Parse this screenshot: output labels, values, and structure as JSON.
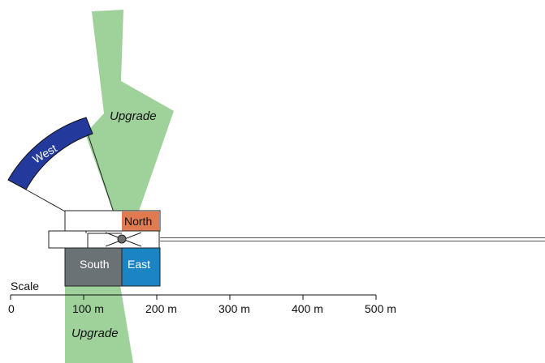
{
  "colors": {
    "upgrade_fill": "#9fd19a",
    "west_fill": "#233a9c",
    "north_fill": "#e07a50",
    "south_fill": "#6b7275",
    "east_fill": "#1b85c4",
    "outline": "#222222",
    "target": "#6e6e6e"
  },
  "labels": {
    "upgrade_top": "Upgrade",
    "upgrade_bottom": "Upgrade",
    "west": "West",
    "north": "North",
    "south": "South",
    "east": "East"
  },
  "scale": {
    "title": "Scale",
    "ticks": [
      {
        "value": 0,
        "label": "0"
      },
      {
        "value": 100,
        "label": "100 m"
      },
      {
        "value": 200,
        "label": "200 m"
      },
      {
        "value": 300,
        "label": "300 m"
      },
      {
        "value": 400,
        "label": "400 m"
      },
      {
        "value": 500,
        "label": "500 m"
      }
    ]
  }
}
